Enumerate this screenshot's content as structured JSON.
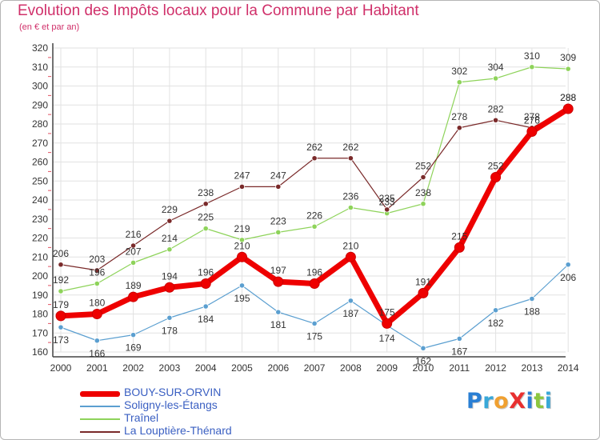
{
  "header": {
    "title": "Evolution des Impôts locaux pour la Commune par Habitant",
    "subtitle": "(en € et par an)"
  },
  "logo": {
    "text": "ProXiti",
    "letters": [
      {
        "ch": "P",
        "color": "#2a7fd4"
      },
      {
        "ch": "r",
        "color": "#39a8d8"
      },
      {
        "ch": "o",
        "color": "#f0a030"
      },
      {
        "ch": "X",
        "color": "#e83030"
      },
      {
        "ch": "i",
        "color": "#2a7fd4"
      },
      {
        "ch": "t",
        "color": "#8cc63f"
      },
      {
        "ch": "i",
        "color": "#39a8d8"
      }
    ]
  },
  "chart_data": {
    "type": "line",
    "title": "Evolution des Impôts locaux pour la Commune par Habitant",
    "subtitle": "(en € et par an)",
    "x": [
      "2000",
      "2001",
      "2002",
      "2003",
      "2004",
      "2005",
      "2006",
      "2007",
      "2008",
      "2009",
      "2010",
      "2011",
      "2012",
      "2013",
      "2014"
    ],
    "ylim": [
      160,
      320
    ],
    "yticks": [
      160,
      170,
      180,
      190,
      200,
      210,
      220,
      230,
      240,
      250,
      260,
      270,
      280,
      290,
      300,
      310,
      320
    ],
    "grid": true,
    "legend_position": "bottom-left",
    "series": [
      {
        "name": "BOUY-SUR-ORVIN",
        "color": "#ee0000",
        "values": [
          179,
          180,
          189,
          194,
          196,
          210,
          197,
          196,
          210,
          175,
          191,
          215,
          252,
          276,
          288
        ],
        "labels": [
          "179",
          "180",
          "189",
          "194",
          "196",
          "210",
          "197",
          "196",
          "210",
          "175",
          "191",
          "215",
          "252",
          "276",
          "288"
        ]
      },
      {
        "name": "Soligny-les-Étangs",
        "color": "#5b9fd0",
        "values": [
          173,
          166,
          169,
          178,
          184,
          195,
          181,
          175,
          187,
          174,
          162,
          167,
          182,
          188,
          206
        ],
        "labels": [
          "173",
          "166",
          "169",
          "178",
          "184",
          "195",
          "181",
          "175",
          "187",
          "174",
          "162",
          "167",
          "182",
          "188",
          "206"
        ]
      },
      {
        "name": "Traînel",
        "color": "#8ed35a",
        "values": [
          192,
          196,
          207,
          214,
          225,
          219,
          223,
          226,
          236,
          233,
          238,
          302,
          304,
          310,
          309
        ],
        "labels": [
          "192",
          "196",
          "207",
          "214",
          "225",
          "219",
          "223",
          "226",
          "236",
          "233",
          "238",
          "302",
          "304",
          "310",
          "309"
        ]
      },
      {
        "name": "La Louptière-Thénard",
        "color": "#7a2a2a",
        "values": [
          206,
          203,
          216,
          229,
          238,
          247,
          247,
          262,
          262,
          235,
          252,
          278,
          282,
          278,
          288
        ],
        "labels": [
          "206",
          "203",
          "216",
          "229",
          "238",
          "247",
          "247",
          "262",
          "262",
          "235",
          "252",
          "278",
          "282",
          "278",
          "288"
        ]
      }
    ]
  }
}
